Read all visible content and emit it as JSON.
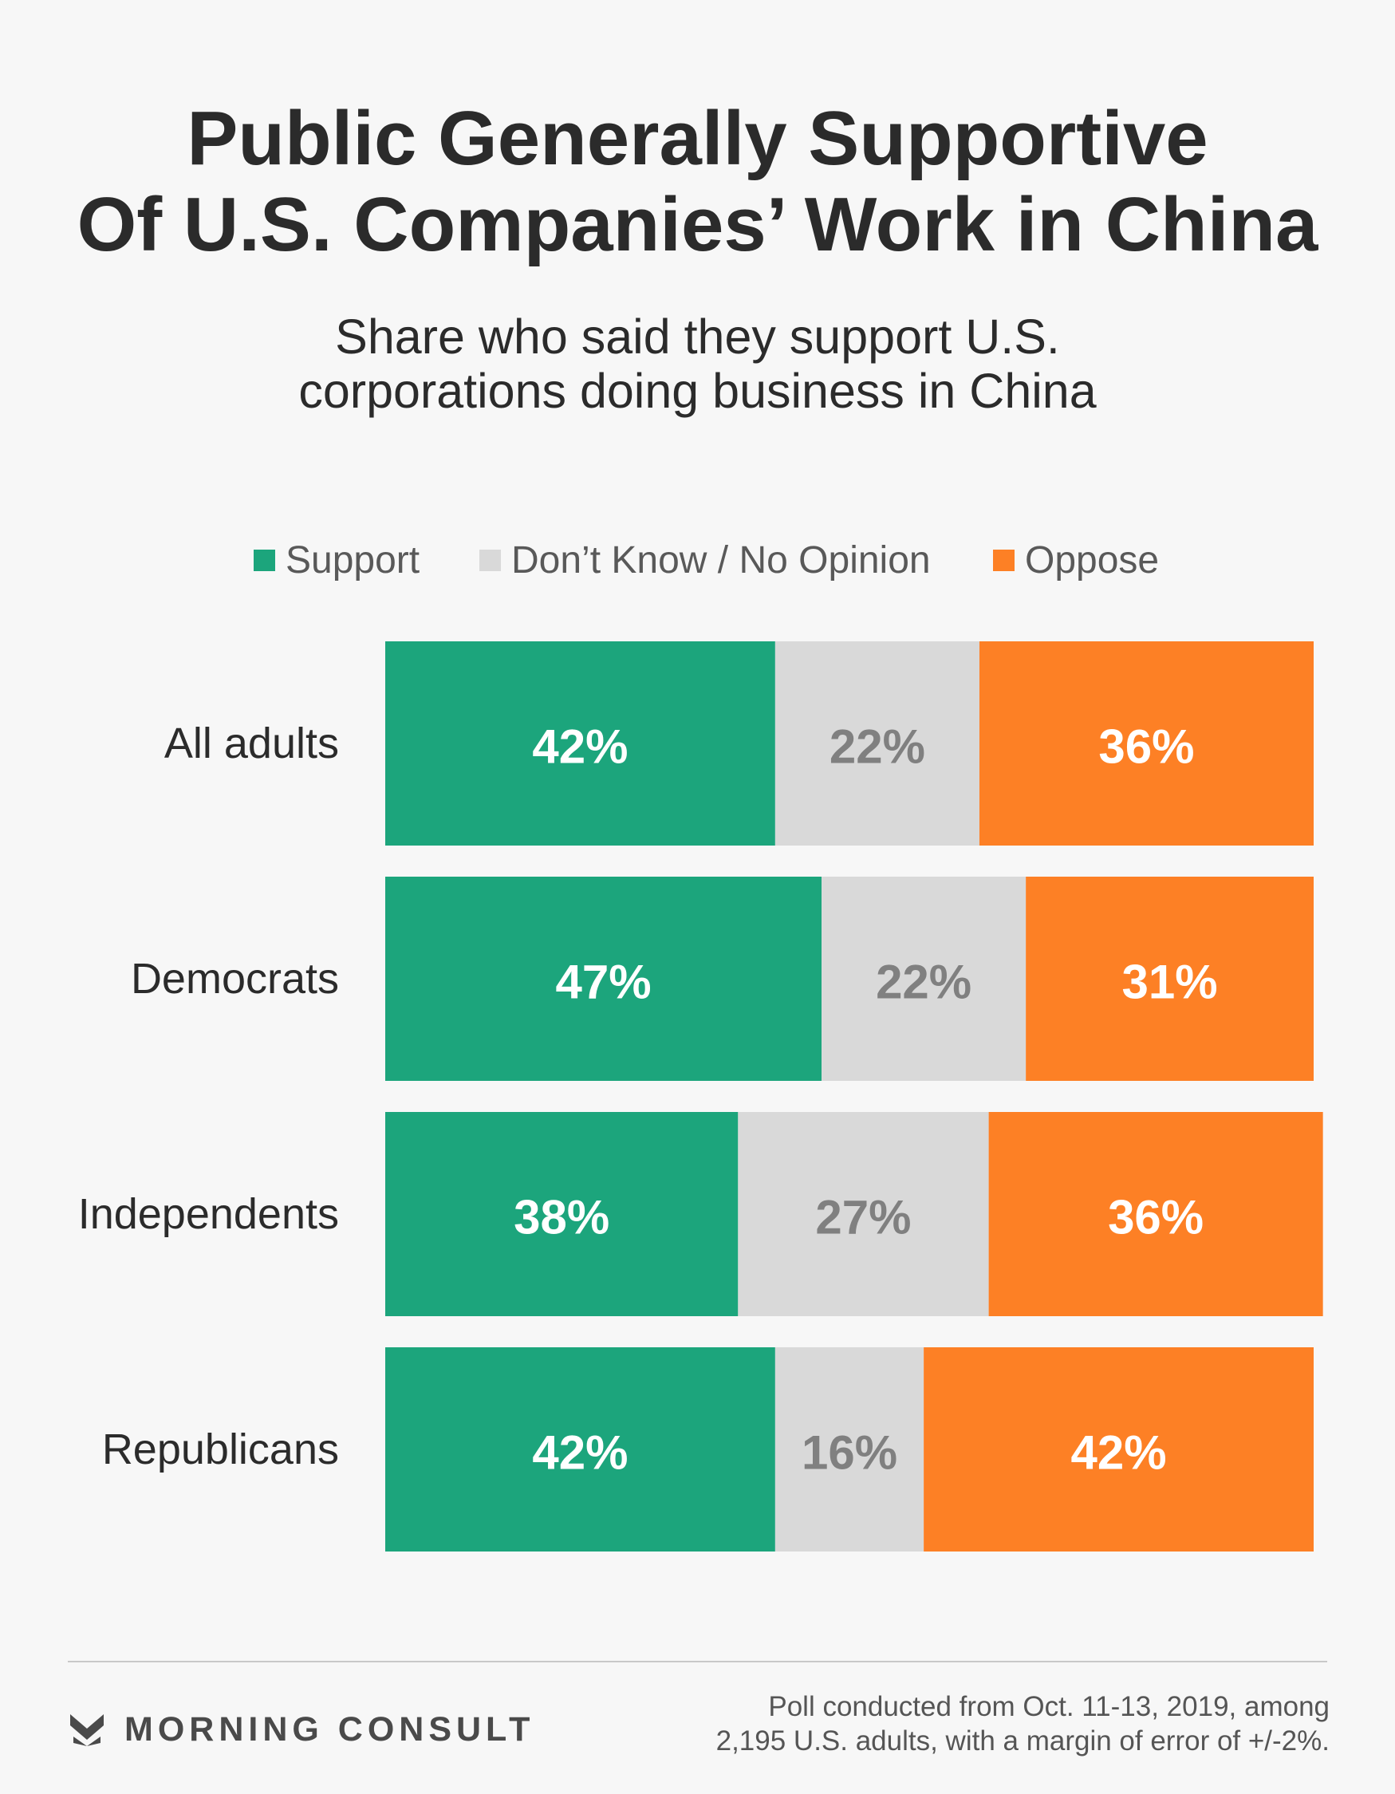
{
  "title": {
    "line1": "Public Generally Supportive",
    "line2": "Of U.S. Companies’ Work in China"
  },
  "subtitle": {
    "line1": "Share who said they support U.S.",
    "line2": "corporations doing business in China"
  },
  "legend": {
    "items": [
      {
        "label": "Support",
        "color": "#1ca57c"
      },
      {
        "label": "Don’t Know / No Opinion",
        "color": "#d9d9d9"
      },
      {
        "label": "Oppose",
        "color": "#fd8025"
      }
    ]
  },
  "chart_data": {
    "type": "bar",
    "orientation": "horizontal",
    "stacked": true,
    "categories": [
      "All adults",
      "Democrats",
      "Independents",
      "Republicans"
    ],
    "series": [
      {
        "name": "Support",
        "values": [
          42,
          47,
          38,
          42
        ],
        "labels": [
          "42%",
          "47%",
          "38%",
          "42%"
        ],
        "color": "#1ca57c",
        "label_color": "#ffffff"
      },
      {
        "name": "Don’t Know / No Opinion",
        "values": [
          22,
          22,
          27,
          16
        ],
        "labels": [
          "22%",
          "22%",
          "27%",
          "16%"
        ],
        "color": "#d9d9d9",
        "label_color": "#808080"
      },
      {
        "name": "Oppose",
        "values": [
          36,
          31,
          36,
          42
        ],
        "labels": [
          "36%",
          "31%",
          "36%",
          "42%"
        ],
        "color": "#fd8025",
        "label_color": "#ffffff"
      }
    ],
    "xlim": [
      0,
      100
    ],
    "grid": false,
    "legend_position": "top"
  },
  "footer": {
    "brand": "MORNING CONSULT",
    "note_line1": "Poll conducted from Oct. 11-13, 2019, among",
    "note_line2": "2,195 U.S. adults, with a margin of error of +/-2%."
  }
}
